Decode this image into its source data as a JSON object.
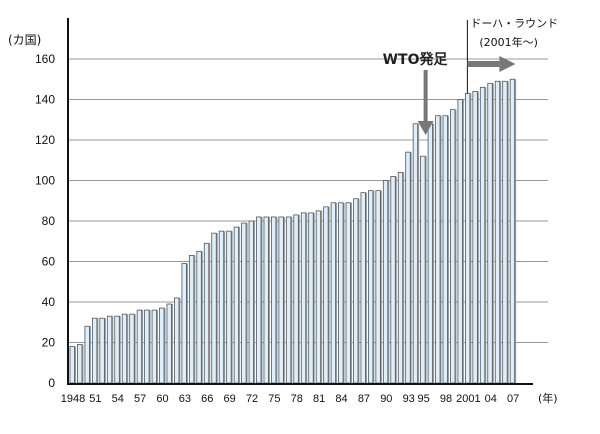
{
  "chart_data": {
    "type": "bar",
    "title": "",
    "ylabel": "(カ国)",
    "xlabel": "(年)",
    "ylim": [
      0,
      160
    ],
    "yticks": [
      0,
      20,
      40,
      60,
      80,
      100,
      120,
      140,
      160
    ],
    "grid": true,
    "x": [
      1948,
      1949,
      1950,
      1951,
      1952,
      1953,
      1954,
      1955,
      1956,
      1957,
      1958,
      1959,
      1960,
      1961,
      1962,
      1963,
      1964,
      1965,
      1966,
      1967,
      1968,
      1969,
      1970,
      1971,
      1972,
      1973,
      1974,
      1975,
      1976,
      1977,
      1978,
      1979,
      1980,
      1981,
      1982,
      1983,
      1984,
      1985,
      1986,
      1987,
      1988,
      1989,
      1990,
      1991,
      1992,
      1993,
      1994,
      1995,
      1996,
      1997,
      1998,
      1999,
      2000,
      2001,
      2002,
      2003,
      2004,
      2005,
      2006,
      2007
    ],
    "values": [
      18,
      19,
      28,
      32,
      32,
      33,
      33,
      34,
      34,
      36,
      36,
      36,
      37,
      39,
      42,
      59,
      63,
      65,
      69,
      74,
      75,
      75,
      77,
      79,
      80,
      82,
      82,
      82,
      82,
      82,
      83,
      84,
      84,
      85,
      87,
      89,
      89,
      89,
      91,
      94,
      95,
      95,
      100,
      102,
      104,
      114,
      128,
      112,
      128,
      132,
      132,
      135,
      140,
      143,
      144,
      146,
      148,
      149,
      149,
      150
    ],
    "xtick_labels": [
      {
        "year": 1948,
        "label": "1948"
      },
      {
        "year": 1951,
        "label": "51"
      },
      {
        "year": 1954,
        "label": "54"
      },
      {
        "year": 1957,
        "label": "57"
      },
      {
        "year": 1960,
        "label": "60"
      },
      {
        "year": 1963,
        "label": "63"
      },
      {
        "year": 1966,
        "label": "66"
      },
      {
        "year": 1969,
        "label": "69"
      },
      {
        "year": 1972,
        "label": "72"
      },
      {
        "year": 1975,
        "label": "75"
      },
      {
        "year": 1978,
        "label": "78"
      },
      {
        "year": 1981,
        "label": "81"
      },
      {
        "year": 1984,
        "label": "84"
      },
      {
        "year": 1987,
        "label": "87"
      },
      {
        "year": 1990,
        "label": "90"
      },
      {
        "year": 1993,
        "label": "93"
      },
      {
        "year": 1995,
        "label": "95"
      },
      {
        "year": 1998,
        "label": "98"
      },
      {
        "year": 2001,
        "label": "2001"
      },
      {
        "year": 2004,
        "label": "04"
      },
      {
        "year": 2007,
        "label": "07"
      }
    ],
    "annotations": [
      {
        "text": "WTO発足",
        "year": 1995,
        "type": "down-arrow"
      },
      {
        "text": "ドーハ・ラウンド",
        "text2": "(2001年〜)",
        "year": 2001,
        "type": "vertical-line-right-arrow"
      }
    ],
    "colors": {
      "bar_fill": "#dcefff",
      "bar_edge": "#555555",
      "bar_shadow": "#9a9a9a",
      "arrow": "#777777",
      "grid": "#999999"
    }
  }
}
